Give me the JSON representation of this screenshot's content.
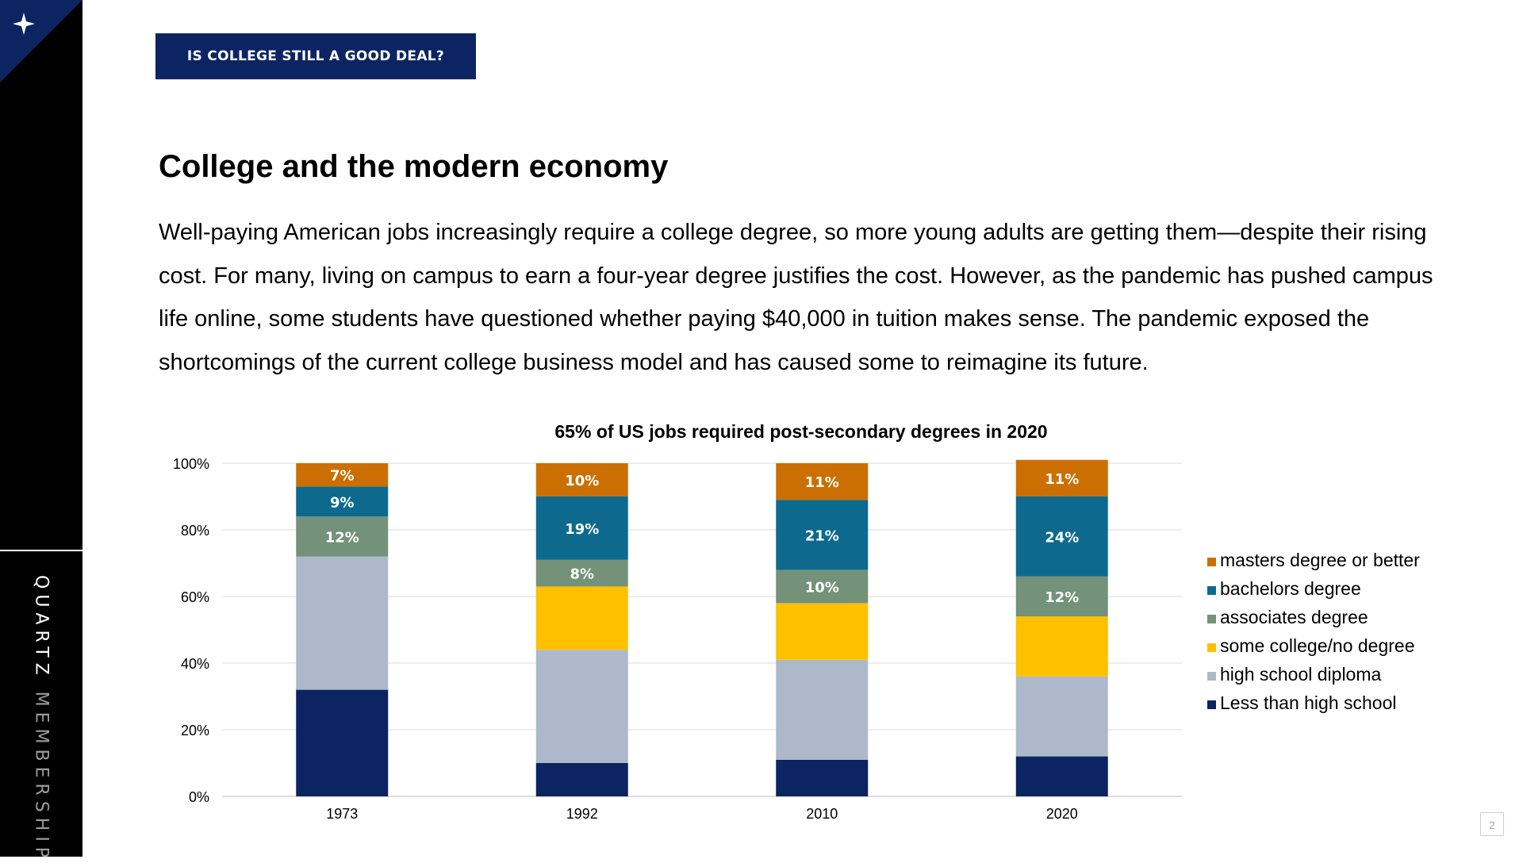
{
  "sidebar": {
    "brand_primary": "QUARTZ",
    "brand_secondary": "MEMBERSHIP",
    "corner_icon": "sparkle-icon"
  },
  "header": {
    "tag_label": "IS COLLEGE STILL A GOOD DEAL?"
  },
  "main": {
    "title": "College and the modern economy",
    "body": "Well-paying American jobs increasingly require a college degree, so more young adults are getting them—despite their rising cost. For many, living on campus to earn a four-year degree justifies the cost. However, as the pandemic has pushed campus life online, some students have questioned whether paying $40,000 in tuition makes sense. The pandemic exposed the shortcomings of the current college business model and has caused some to reimagine its future."
  },
  "page_number": "2",
  "colors": {
    "header_bg": "#0c2461"
  },
  "chart_data": {
    "type": "bar",
    "stacked": true,
    "title": "65% of US jobs required post-secondary degrees in 2020",
    "xlabel": "",
    "ylabel": "",
    "categories": [
      "1973",
      "1992",
      "2010",
      "2020"
    ],
    "ylim": [
      0,
      100
    ],
    "yticks": [
      "0%",
      "20%",
      "40%",
      "60%",
      "80%",
      "100%"
    ],
    "grid": true,
    "legend_position": "right",
    "series": [
      {
        "name": "Less than high school",
        "color": "#0c2461",
        "values": [
          32,
          10,
          11,
          12
        ],
        "labels": [
          "",
          "",
          "",
          ""
        ],
        "label_color": "#ffffff"
      },
      {
        "name": "high school diploma",
        "color": "#adb9ca",
        "values": [
          40,
          34,
          30,
          24
        ],
        "labels": [
          "",
          "",
          "",
          ""
        ],
        "label_color": "#ffffff"
      },
      {
        "name": "some college/no degree",
        "color": "#ffc000",
        "values": [
          0,
          19,
          17,
          18
        ],
        "labels": [
          "",
          "",
          "",
          ""
        ],
        "label_color": "#ffffff"
      },
      {
        "name": "associates degree",
        "color": "#74917a",
        "values": [
          12,
          8,
          10,
          12
        ],
        "labels": [
          "12%",
          "8%",
          "10%",
          "12%"
        ],
        "label_color": "#ffffff"
      },
      {
        "name": "bachelors degree",
        "color": "#0d6a8e",
        "values": [
          9,
          19,
          21,
          24
        ],
        "labels": [
          "9%",
          "19%",
          "21%",
          "24%"
        ],
        "label_color": "#ffffff"
      },
      {
        "name": "masters degree or better",
        "color": "#cc6f03",
        "values": [
          7,
          10,
          11,
          11
        ],
        "labels": [
          "7%",
          "10%",
          "11%",
          "11%"
        ],
        "label_color": "#ffffff"
      }
    ]
  }
}
